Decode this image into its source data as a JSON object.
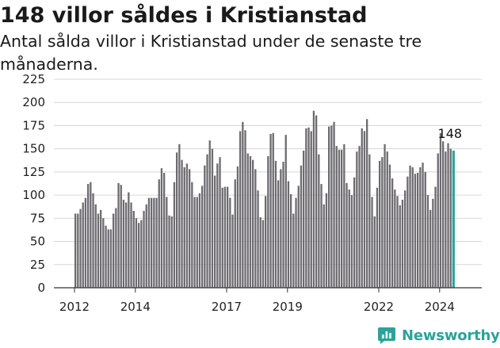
{
  "title": "148 villor såldes i Kristianstad",
  "subtitle": "Antal sålda villor i Kristianstad under de senaste tre månaderna.",
  "brand": {
    "name": "Newsworthy",
    "icon": "newsworthy-logo-icon",
    "color": "#2aa39b"
  },
  "chart_data": {
    "type": "bar",
    "title": "148 villor såldes i Kristianstad",
    "subtitle": "Antal sålda villor i Kristianstad under de senaste tre månaderna.",
    "start_month": "2012-01",
    "ylim": [
      0,
      225
    ],
    "yticks": [
      0,
      25,
      50,
      75,
      100,
      125,
      150,
      175,
      200,
      225
    ],
    "xtick_labels": [
      "2012",
      "2014",
      "2017",
      "2019",
      "2022",
      "2024"
    ],
    "grid": true,
    "bar_color": "#6d6b70",
    "highlight_color": "#2aa39b",
    "highlight_last": true,
    "last_label": "148",
    "values": [
      80,
      80,
      85,
      92,
      97,
      112,
      114,
      102,
      90,
      80,
      84,
      75,
      67,
      63,
      63,
      80,
      86,
      113,
      111,
      95,
      92,
      103,
      92,
      83,
      75,
      70,
      73,
      83,
      90,
      97,
      97,
      97,
      97,
      117,
      129,
      124,
      98,
      78,
      77,
      114,
      146,
      155,
      138,
      130,
      134,
      128,
      114,
      98,
      98,
      102,
      110,
      132,
      144,
      159,
      150,
      121,
      134,
      141,
      108,
      109,
      109,
      97,
      79,
      117,
      131,
      169,
      179,
      170,
      145,
      142,
      138,
      128,
      105,
      76,
      73,
      99,
      142,
      166,
      167,
      137,
      116,
      128,
      136,
      165,
      115,
      101,
      80,
      97,
      110,
      132,
      148,
      172,
      173,
      169,
      191,
      186,
      144,
      112,
      90,
      102,
      174,
      175,
      179,
      153,
      149,
      149,
      155,
      113,
      106,
      100,
      119,
      147,
      153,
      172,
      169,
      182,
      144,
      98,
      77,
      108,
      137,
      141,
      155,
      147,
      133,
      118,
      106,
      99,
      89,
      95,
      105,
      120,
      132,
      130,
      123,
      124,
      130,
      135,
      125,
      100,
      84,
      96,
      109,
      145,
      167,
      158,
      147,
      156,
      150,
      148
    ]
  }
}
